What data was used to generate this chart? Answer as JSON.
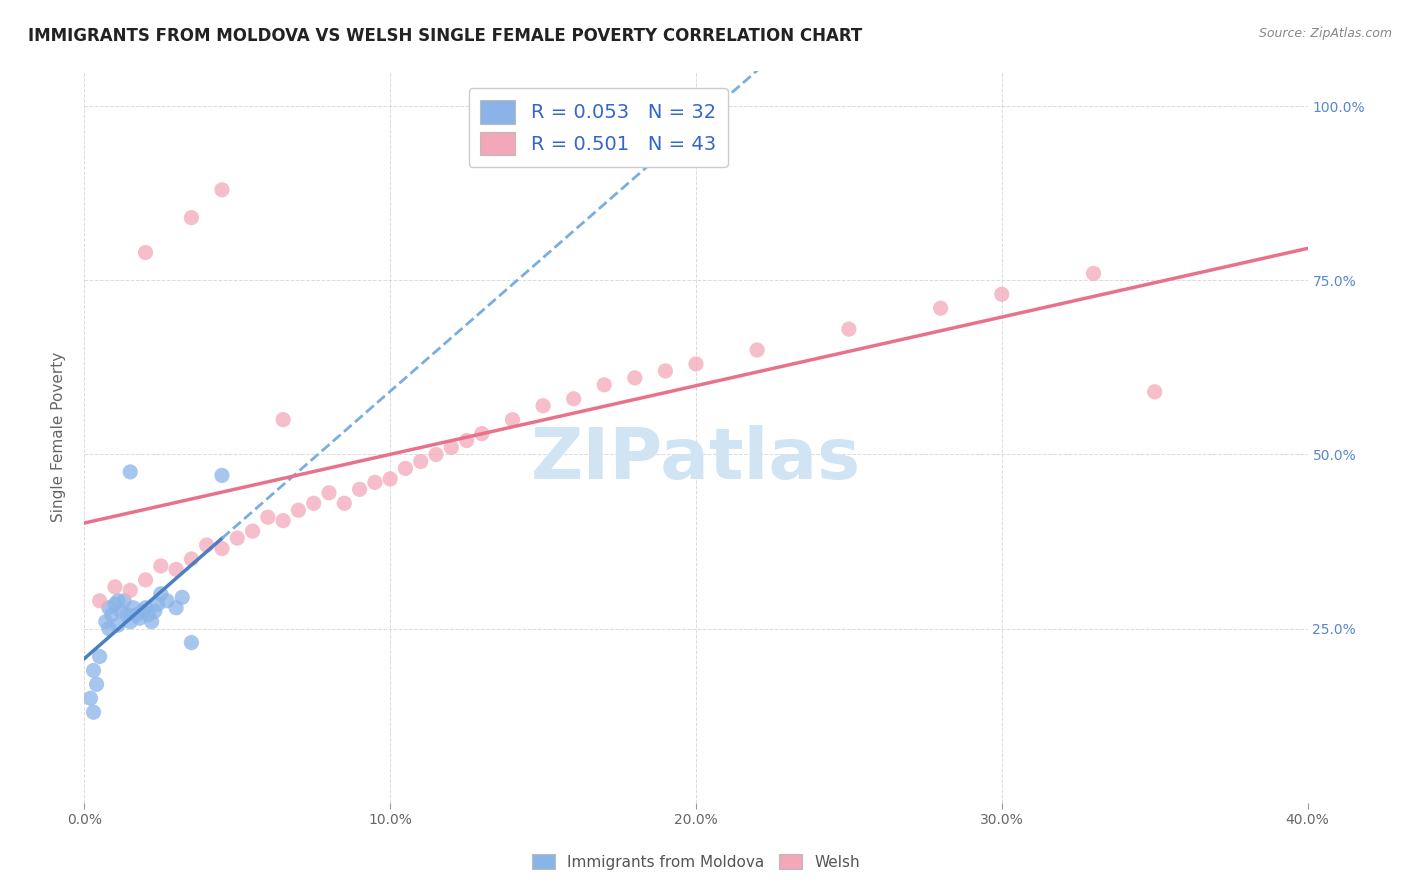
{
  "title": "IMMIGRANTS FROM MOLDOVA VS WELSH SINGLE FEMALE POVERTY CORRELATION CHART",
  "source": "Source: ZipAtlas.com",
  "ylabel": "Single Female Poverty",
  "legend1_label": "R = 0.053   N = 32",
  "legend2_label": "R = 0.501   N = 43",
  "legend_bottom1": "Immigrants from Moldova",
  "legend_bottom2": "Welsh",
  "blue_color": "#8ab4e8",
  "pink_color": "#f4a7b9",
  "blue_line_solid_color": "#4a7fc1",
  "blue_line_dash_color": "#7aaee0",
  "pink_line_color": "#e8728a",
  "watermark_color": "#d0e4f4",
  "background_color": "#ffffff",
  "grid_color": "#cccccc",
  "blue_points": [
    [
      0.5,
      21.0
    ],
    [
      0.7,
      26.0
    ],
    [
      0.8,
      28.0
    ],
    [
      0.8,
      25.0
    ],
    [
      0.9,
      27.0
    ],
    [
      1.0,
      28.5
    ],
    [
      1.1,
      29.0
    ],
    [
      1.1,
      25.5
    ],
    [
      1.2,
      27.5
    ],
    [
      1.3,
      29.0
    ],
    [
      1.4,
      27.0
    ],
    [
      1.5,
      26.0
    ],
    [
      1.6,
      28.0
    ],
    [
      1.7,
      27.0
    ],
    [
      1.8,
      26.5
    ],
    [
      1.9,
      27.5
    ],
    [
      2.0,
      28.0
    ],
    [
      2.1,
      27.0
    ],
    [
      2.2,
      26.0
    ],
    [
      2.3,
      27.5
    ],
    [
      2.4,
      28.5
    ],
    [
      2.5,
      30.0
    ],
    [
      2.7,
      29.0
    ],
    [
      3.0,
      28.0
    ],
    [
      3.2,
      29.5
    ],
    [
      3.5,
      23.0
    ],
    [
      0.3,
      19.0
    ],
    [
      0.4,
      17.0
    ],
    [
      0.2,
      15.0
    ],
    [
      0.3,
      13.0
    ],
    [
      4.5,
      47.0
    ],
    [
      1.5,
      47.5
    ]
  ],
  "pink_points": [
    [
      0.5,
      29.0
    ],
    [
      1.0,
      31.0
    ],
    [
      1.5,
      30.5
    ],
    [
      2.0,
      32.0
    ],
    [
      2.5,
      34.0
    ],
    [
      3.0,
      33.5
    ],
    [
      3.5,
      35.0
    ],
    [
      4.0,
      37.0
    ],
    [
      4.5,
      36.5
    ],
    [
      5.0,
      38.0
    ],
    [
      5.5,
      39.0
    ],
    [
      6.0,
      41.0
    ],
    [
      6.5,
      40.5
    ],
    [
      7.0,
      42.0
    ],
    [
      7.5,
      43.0
    ],
    [
      8.0,
      44.5
    ],
    [
      8.5,
      43.0
    ],
    [
      9.0,
      45.0
    ],
    [
      9.5,
      46.0
    ],
    [
      10.0,
      46.5
    ],
    [
      10.5,
      48.0
    ],
    [
      11.0,
      49.0
    ],
    [
      11.5,
      50.0
    ],
    [
      12.0,
      51.0
    ],
    [
      12.5,
      52.0
    ],
    [
      13.0,
      53.0
    ],
    [
      14.0,
      55.0
    ],
    [
      15.0,
      57.0
    ],
    [
      16.0,
      58.0
    ],
    [
      17.0,
      60.0
    ],
    [
      18.0,
      61.0
    ],
    [
      19.0,
      62.0
    ],
    [
      20.0,
      63.0
    ],
    [
      22.0,
      65.0
    ],
    [
      25.0,
      68.0
    ],
    [
      28.0,
      71.0
    ],
    [
      30.0,
      73.0
    ],
    [
      33.0,
      76.0
    ],
    [
      2.0,
      79.0
    ],
    [
      3.5,
      84.0
    ],
    [
      4.5,
      88.0
    ],
    [
      6.5,
      55.0
    ],
    [
      35.0,
      59.0
    ]
  ],
  "xlim": [
    0.0,
    40.0
  ],
  "ylim": [
    0.0,
    105.0
  ]
}
